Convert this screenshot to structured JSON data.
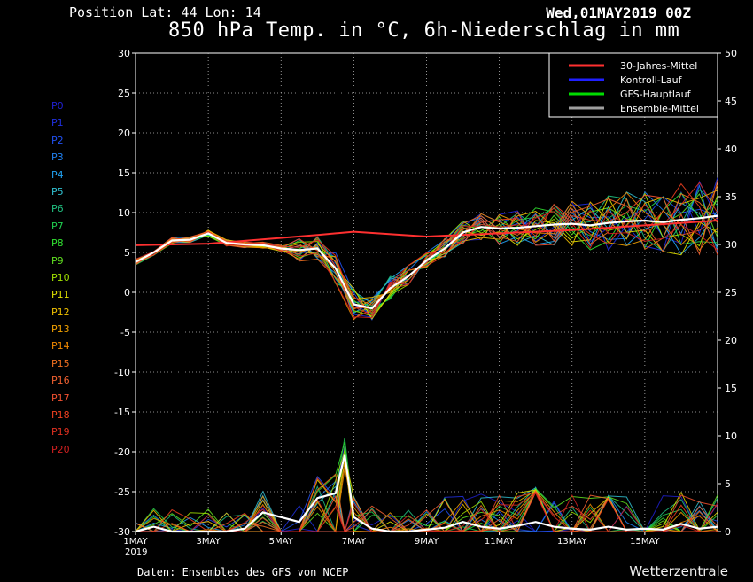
{
  "header": {
    "position": "Position  Lat: 44 Lon: 14",
    "date": "Wed,01MAY2019 00Z",
    "title": "850 hPa Temp. in °C, 6h-Niederschlag in mm"
  },
  "footer": {
    "source": "Daten: Ensembles des GFS von NCEP",
    "brand": "Wetterzentrale"
  },
  "members": [
    {
      "label": "P0",
      "color": "#2020d0"
    },
    {
      "label": "P1",
      "color": "#2030e0"
    },
    {
      "label": "P2",
      "color": "#2050f0"
    },
    {
      "label": "P3",
      "color": "#2080f0"
    },
    {
      "label": "P4",
      "color": "#20a0f0"
    },
    {
      "label": "P5",
      "color": "#30c0d0"
    },
    {
      "label": "P6",
      "color": "#20c080"
    },
    {
      "label": "P7",
      "color": "#20d050"
    },
    {
      "label": "P8",
      "color": "#30e030"
    },
    {
      "label": "P9",
      "color": "#60e020"
    },
    {
      "label": "P10",
      "color": "#a0e000"
    },
    {
      "label": "P11",
      "color": "#e0e000"
    },
    {
      "label": "P12",
      "color": "#f0c000"
    },
    {
      "label": "P13",
      "color": "#f0a000"
    },
    {
      "label": "P14",
      "color": "#f08800"
    },
    {
      "label": "P15",
      "color": "#f07020"
    },
    {
      "label": "P16",
      "color": "#f06030"
    },
    {
      "label": "P17",
      "color": "#f05030"
    },
    {
      "label": "P18",
      "color": "#f04020"
    },
    {
      "label": "P19",
      "color": "#e03020"
    },
    {
      "label": "P20",
      "color": "#d02020"
    }
  ],
  "chart_data": {
    "type": "line",
    "x_ticks": [
      "1MAY",
      "3MAY",
      "5MAY",
      "7MAY",
      "9MAY",
      "11MAY",
      "13MAY",
      "15MAY"
    ],
    "x_year": "2019",
    "x_days_range": [
      0,
      16
    ],
    "y_left": {
      "range": [
        -30,
        30
      ],
      "ticks": [
        30,
        25,
        20,
        15,
        10,
        5,
        0,
        -5,
        -10,
        -15,
        -20,
        -25,
        -30
      ]
    },
    "y_right": {
      "range": [
        0,
        50
      ],
      "ticks": [
        50,
        45,
        40,
        35,
        30,
        25,
        20,
        15,
        10,
        5,
        0
      ]
    },
    "grid": true,
    "legend_position": "top-right",
    "legend": [
      {
        "name": "30-Jahres-Mittel",
        "color": "#ff3030"
      },
      {
        "name": "Kontroll-Lauf",
        "color": "#2020ff"
      },
      {
        "name": "GFS-Hauptlauf",
        "color": "#00dd00"
      },
      {
        "name": "Ensemble-Mittel",
        "color": "#a0a0a0"
      }
    ],
    "climate_mean": {
      "days": [
        0,
        2,
        5,
        6,
        8,
        10,
        12,
        14,
        16
      ],
      "temp": [
        5.9,
        6.1,
        7.2,
        7.6,
        7.0,
        7.4,
        7.8,
        8.4,
        9.0
      ]
    },
    "ensemble_mean_temp": {
      "days": [
        0,
        0.5,
        1,
        1.5,
        2,
        2.5,
        3,
        3.5,
        4,
        4.5,
        5,
        5.5,
        6,
        6.5,
        7,
        7.5,
        8,
        8.5,
        9,
        9.5,
        10,
        10.5,
        11,
        11.5,
        12,
        12.5,
        13,
        13.5,
        14,
        14.5,
        15,
        15.5,
        16
      ],
      "temp": [
        3.8,
        5.0,
        6.5,
        6.6,
        7.4,
        6.2,
        6.0,
        5.9,
        5.5,
        5.3,
        5.5,
        3.0,
        -1.5,
        -2.0,
        0.5,
        2.0,
        4.0,
        5.5,
        7.5,
        8.2,
        8.0,
        8.1,
        8.3,
        8.5,
        8.6,
        8.4,
        8.7,
        8.9,
        9.0,
        8.8,
        9.1,
        9.3,
        9.6
      ]
    },
    "ensemble_mean_precip": {
      "days": [
        0,
        0.5,
        1,
        1.5,
        2,
        2.5,
        3,
        3.5,
        4,
        4.5,
        5,
        5.5,
        5.75,
        6,
        6.5,
        7,
        7.5,
        8,
        8.5,
        9,
        9.5,
        10,
        10.5,
        11,
        11.5,
        12,
        12.5,
        13,
        13.5,
        14,
        14.5,
        15,
        15.5,
        16
      ],
      "precip": [
        0,
        0.5,
        0,
        0,
        0,
        0,
        0.3,
        2.0,
        1.5,
        1.0,
        3.5,
        4.0,
        8.0,
        1.5,
        0.3,
        0,
        0,
        0.2,
        0.4,
        1.0,
        0.5,
        0.3,
        0.6,
        1.0,
        0.5,
        0.3,
        0.2,
        0.5,
        0.2,
        0.3,
        0.2,
        0.8,
        0.3,
        0.5
      ]
    }
  }
}
